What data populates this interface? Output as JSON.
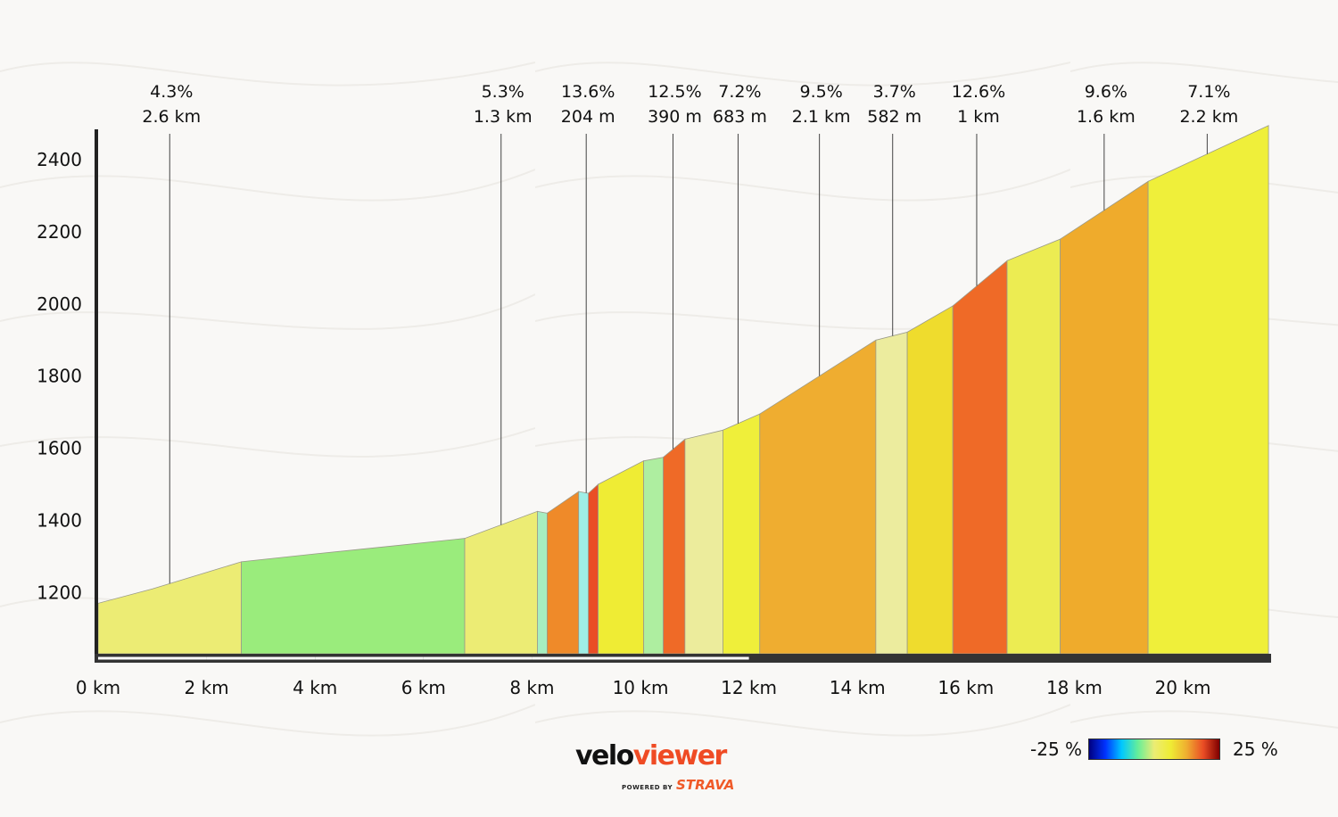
{
  "chart_data": {
    "type": "area",
    "title": "",
    "xlabel": "",
    "ylabel": "",
    "xlim": [
      0,
      21.6
    ],
    "ylim": [
      1030,
      2500
    ],
    "x_ticks": [
      "0 km",
      "2 km",
      "4 km",
      "6 km",
      "8 km",
      "10 km",
      "12 km",
      "14 km",
      "16 km",
      "18 km",
      "20 km"
    ],
    "x_tick_values": [
      0,
      2,
      4,
      6,
      8,
      10,
      12,
      14,
      16,
      18,
      20
    ],
    "y_ticks": [
      "1200",
      "1400",
      "1600",
      "1800",
      "2000",
      "2200",
      "2400"
    ],
    "y_tick_values": [
      1200,
      1400,
      1600,
      1800,
      2000,
      2200,
      2400
    ],
    "profile": [
      {
        "x": 0.0,
        "y": 1170
      },
      {
        "x": 1.0,
        "y": 1210
      },
      {
        "x": 2.64,
        "y": 1285
      },
      {
        "x": 4.0,
        "y": 1307
      },
      {
        "x": 5.5,
        "y": 1330
      },
      {
        "x": 6.76,
        "y": 1350
      },
      {
        "x": 8.1,
        "y": 1425
      },
      {
        "x": 8.28,
        "y": 1420
      },
      {
        "x": 8.86,
        "y": 1480
      },
      {
        "x": 9.04,
        "y": 1475
      },
      {
        "x": 9.22,
        "y": 1500
      },
      {
        "x": 10.06,
        "y": 1565
      },
      {
        "x": 10.42,
        "y": 1575
      },
      {
        "x": 10.82,
        "y": 1625
      },
      {
        "x": 11.52,
        "y": 1650
      },
      {
        "x": 12.2,
        "y": 1695
      },
      {
        "x": 14.34,
        "y": 1900
      },
      {
        "x": 14.92,
        "y": 1922
      },
      {
        "x": 15.76,
        "y": 1995
      },
      {
        "x": 16.76,
        "y": 2120
      },
      {
        "x": 17.74,
        "y": 2180
      },
      {
        "x": 19.36,
        "y": 2340
      },
      {
        "x": 21.58,
        "y": 2495
      }
    ],
    "segments": [
      {
        "x0": 0.0,
        "x1": 2.64,
        "color": "#ecec74"
      },
      {
        "x0": 2.64,
        "x1": 6.76,
        "color": "#9aec7c"
      },
      {
        "x0": 6.76,
        "x1": 8.1,
        "color": "#ecec74"
      },
      {
        "x0": 8.1,
        "x1": 8.28,
        "color": "#a6eec0"
      },
      {
        "x0": 8.28,
        "x1": 8.86,
        "color": "#ef8a29"
      },
      {
        "x0": 8.86,
        "x1": 9.04,
        "color": "#9feee6"
      },
      {
        "x0": 9.04,
        "x1": 9.22,
        "color": "#ea4d25"
      },
      {
        "x0": 9.22,
        "x1": 10.06,
        "color": "#efec34"
      },
      {
        "x0": 10.06,
        "x1": 10.42,
        "color": "#aeeea0"
      },
      {
        "x0": 10.42,
        "x1": 10.82,
        "color": "#ef6a27"
      },
      {
        "x0": 10.82,
        "x1": 11.52,
        "color": "#ecec9c"
      },
      {
        "x0": 11.52,
        "x1": 12.2,
        "color": "#efef3a"
      },
      {
        "x0": 12.2,
        "x1": 14.34,
        "color": "#efad30"
      },
      {
        "x0": 14.34,
        "x1": 14.92,
        "color": "#ecec9e"
      },
      {
        "x0": 14.92,
        "x1": 15.76,
        "color": "#efdc2d"
      },
      {
        "x0": 15.76,
        "x1": 16.76,
        "color": "#ef6a27"
      },
      {
        "x0": 16.76,
        "x1": 17.74,
        "color": "#ecec52"
      },
      {
        "x0": 17.74,
        "x1": 19.36,
        "color": "#efab2c"
      },
      {
        "x0": 19.36,
        "x1": 21.58,
        "color": "#efef3a"
      }
    ],
    "annotations": [
      {
        "x": 1.32,
        "gradient": "4.3%",
        "length": "2.6 km"
      },
      {
        "x": 7.43,
        "gradient": "5.3%",
        "length": "1.3 km"
      },
      {
        "x": 9.0,
        "gradient": "13.6%",
        "length": "204 m"
      },
      {
        "x": 10.6,
        "gradient": "12.5%",
        "length": "390 m"
      },
      {
        "x": 11.8,
        "gradient": "7.2%",
        "length": "683 m"
      },
      {
        "x": 13.3,
        "gradient": "9.5%",
        "length": "2.1 km"
      },
      {
        "x": 14.65,
        "gradient": "3.7%",
        "length": "582 m"
      },
      {
        "x": 16.2,
        "gradient": "12.6%",
        "length": "1 km"
      },
      {
        "x": 18.55,
        "gradient": "9.6%",
        "length": "1.6 km"
      },
      {
        "x": 20.45,
        "gradient": "7.1%",
        "length": "2.2 km"
      }
    ],
    "grid": false,
    "legend": "bottom-right"
  },
  "colors": {
    "background": "#f9f8f6",
    "axis": "#222222",
    "annotation_line": "#444444",
    "brand_orange": "#ef4b24"
  },
  "logo": {
    "velo": "velo",
    "viewer": "viewer",
    "powered": "POWERED BY",
    "strava": "STRAVA"
  },
  "gradient_legend": {
    "min_label": "-25 %",
    "max_label": "25 %",
    "stops": [
      "#000080",
      "#0033ff",
      "#00c8ff",
      "#66ee99",
      "#ecec74",
      "#efec34",
      "#efad30",
      "#ea4d25",
      "#800000"
    ]
  }
}
